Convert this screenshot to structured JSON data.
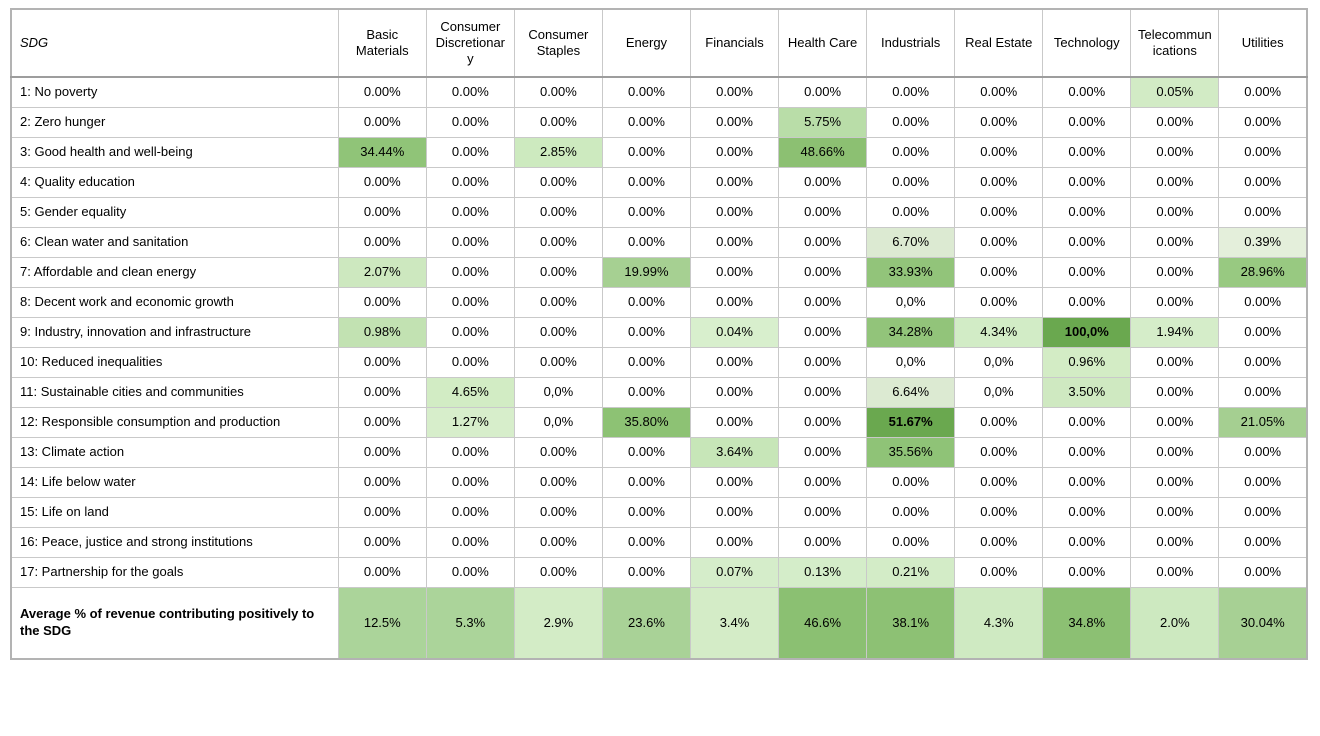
{
  "chart_data": {
    "type": "heatmap",
    "title": "",
    "header_first_col": "SDG",
    "columns": [
      "Basic Materials",
      "Consumer Discretionary",
      "Consumer Staples",
      "Energy",
      "Financials",
      "Health Care",
      "Industrials",
      "Real Estate",
      "Technology",
      "Telecommunications",
      "Utilities"
    ],
    "value_unit": "percent of revenue",
    "rows": [
      {
        "label": "1: No poverty",
        "values": [
          "0.00%",
          "0.00%",
          "0.00%",
          "0.00%",
          "0.00%",
          "0.00%",
          "0.00%",
          "0.00%",
          "0.00%",
          "0.05%",
          "0.00%"
        ],
        "bg": [
          null,
          null,
          null,
          null,
          null,
          null,
          null,
          null,
          null,
          "#d2ebc5",
          null
        ]
      },
      {
        "label": "2: Zero hunger",
        "values": [
          "0.00%",
          "0.00%",
          "0.00%",
          "0.00%",
          "0.00%",
          "5.75%",
          "0.00%",
          "0.00%",
          "0.00%",
          "0.00%",
          "0.00%"
        ],
        "bg": [
          null,
          null,
          null,
          null,
          null,
          "#b9dda8",
          null,
          null,
          null,
          null,
          null
        ]
      },
      {
        "label": "3: Good health and well-being",
        "values": [
          "34.44%",
          "0.00%",
          "2.85%",
          "0.00%",
          "0.00%",
          "48.66%",
          "0.00%",
          "0.00%",
          "0.00%",
          "0.00%",
          "0.00%"
        ],
        "bg": [
          "#90c478",
          null,
          "#cdeabf",
          null,
          null,
          "#8cc072",
          null,
          null,
          null,
          null,
          null
        ]
      },
      {
        "label": "4: Quality education",
        "values": [
          "0.00%",
          "0.00%",
          "0.00%",
          "0.00%",
          "0.00%",
          "0.00%",
          "0.00%",
          "0.00%",
          "0.00%",
          "0.00%",
          "0.00%"
        ],
        "bg": [
          null,
          null,
          null,
          null,
          null,
          null,
          null,
          null,
          null,
          null,
          null
        ]
      },
      {
        "label": "5: Gender equality",
        "values": [
          "0.00%",
          "0.00%",
          "0.00%",
          "0.00%",
          "0.00%",
          "0.00%",
          "0.00%",
          "0.00%",
          "0.00%",
          "0.00%",
          "0.00%"
        ],
        "bg": [
          null,
          null,
          null,
          null,
          null,
          null,
          null,
          null,
          null,
          null,
          null
        ]
      },
      {
        "label": "6: Clean water and sanitation",
        "values": [
          "0.00%",
          "0.00%",
          "0.00%",
          "0.00%",
          "0.00%",
          "0.00%",
          "6.70%",
          "0.00%",
          "0.00%",
          "0.00%",
          "0.39%"
        ],
        "bg": [
          null,
          null,
          null,
          null,
          null,
          null,
          "#dcead2",
          null,
          null,
          null,
          "#e4efdb"
        ]
      },
      {
        "label": "7: Affordable and clean energy",
        "values": [
          "2.07%",
          "0.00%",
          "0.00%",
          "19.99%",
          "0.00%",
          "0.00%",
          "33.93%",
          "0.00%",
          "0.00%",
          "0.00%",
          "28.96%"
        ],
        "bg": [
          "#cde8bf",
          null,
          null,
          "#a6d092",
          null,
          null,
          "#92c47a",
          null,
          null,
          null,
          "#98c981"
        ]
      },
      {
        "label": "8: Decent work and economic growth",
        "values": [
          "0.00%",
          "0.00%",
          "0.00%",
          "0.00%",
          "0.00%",
          "0.00%",
          "0,0%",
          "0.00%",
          "0.00%",
          "0.00%",
          "0.00%"
        ],
        "bg": [
          null,
          null,
          null,
          null,
          null,
          null,
          null,
          null,
          null,
          null,
          null
        ]
      },
      {
        "label": "9: Industry, innovation and infrastructure",
        "values": [
          "0.98%",
          "0.00%",
          "0.00%",
          "0.00%",
          "0.04%",
          "0.00%",
          "34.28%",
          "4.34%",
          "100,0%",
          "1.94%",
          "0.00%"
        ],
        "bg": [
          "#c2e2b2",
          null,
          null,
          null,
          "#d8efcd",
          null,
          "#92c47a",
          "#d2ecc6",
          "#6aa84f",
          "#d5edc9",
          null
        ]
      },
      {
        "label": "10: Reduced inequalities",
        "values": [
          "0.00%",
          "0.00%",
          "0.00%",
          "0.00%",
          "0.00%",
          "0.00%",
          "0,0%",
          "0,0%",
          "0.96%",
          "0.00%",
          "0.00%"
        ],
        "bg": [
          null,
          null,
          null,
          null,
          null,
          null,
          null,
          null,
          "#d3ecc5",
          null,
          null
        ]
      },
      {
        "label": "11: Sustainable cities and communities",
        "values": [
          "0.00%",
          "4.65%",
          "0,0%",
          "0.00%",
          "0.00%",
          "0.00%",
          "6.64%",
          "0,0%",
          "3.50%",
          "0.00%",
          "0.00%"
        ],
        "bg": [
          null,
          "#d2ecc4",
          null,
          null,
          null,
          null,
          "#dcead2",
          null,
          "#cfe9c1",
          null,
          null
        ]
      },
      {
        "label": "12: Responsible consumption and production",
        "values": [
          "0.00%",
          "1.27%",
          "0,0%",
          "35.80%",
          "0.00%",
          "0.00%",
          "51.67%",
          "0.00%",
          "0.00%",
          "0.00%",
          "21.05%"
        ],
        "bg": [
          null,
          "#d7eecb",
          null,
          "#8dc274",
          null,
          null,
          "#6aa84f",
          null,
          null,
          null,
          "#a5cf91"
        ]
      },
      {
        "label": "13: Climate action",
        "values": [
          "0.00%",
          "0.00%",
          "0.00%",
          "0.00%",
          "3.64%",
          "0.00%",
          "35.56%",
          "0.00%",
          "0.00%",
          "0.00%",
          "0.00%"
        ],
        "bg": [
          null,
          null,
          null,
          null,
          "#c7e6b8",
          null,
          "#8fc377",
          null,
          null,
          null,
          null
        ]
      },
      {
        "label": "14: Life below water",
        "values": [
          "0.00%",
          "0.00%",
          "0.00%",
          "0.00%",
          "0.00%",
          "0.00%",
          "0.00%",
          "0.00%",
          "0.00%",
          "0.00%",
          "0.00%"
        ],
        "bg": [
          null,
          null,
          null,
          null,
          null,
          null,
          null,
          null,
          null,
          null,
          null
        ]
      },
      {
        "label": "15: Life on land",
        "values": [
          "0.00%",
          "0.00%",
          "0.00%",
          "0.00%",
          "0.00%",
          "0.00%",
          "0.00%",
          "0.00%",
          "0.00%",
          "0.00%",
          "0.00%"
        ],
        "bg": [
          null,
          null,
          null,
          null,
          null,
          null,
          null,
          null,
          null,
          null,
          null
        ]
      },
      {
        "label": "16: Peace, justice and strong institutions",
        "values": [
          "0.00%",
          "0.00%",
          "0.00%",
          "0.00%",
          "0.00%",
          "0.00%",
          "0.00%",
          "0.00%",
          "0.00%",
          "0.00%",
          "0.00%"
        ],
        "bg": [
          null,
          null,
          null,
          null,
          null,
          null,
          null,
          null,
          null,
          null,
          null
        ]
      },
      {
        "label": "17: Partnership for the goals",
        "values": [
          "0.00%",
          "0.00%",
          "0.00%",
          "0.00%",
          "0.07%",
          "0.13%",
          "0.21%",
          "0.00%",
          "0.00%",
          "0.00%",
          "0.00%"
        ],
        "bg": [
          null,
          null,
          null,
          null,
          "#d5edca",
          "#d4edc9",
          "#d3ecc7",
          null,
          null,
          null,
          null
        ]
      }
    ],
    "bold_cells": [
      [
        8,
        8
      ],
      [
        11,
        6
      ]
    ],
    "footer": {
      "label": "Average % of revenue contributing positively to the SDG",
      "values": [
        "12.5%",
        "5.3%",
        "2.9%",
        "23.6%",
        "3.4%",
        "46.6%",
        "38.1%",
        "4.3%",
        "34.8%",
        "2.0%",
        "30.04%"
      ],
      "bg": [
        "#abd49a",
        "#abd49a",
        "#d3ecc6",
        "#a9d297",
        "#d4ecc7",
        "#8bc072",
        "#8dc174",
        "#cfeac2",
        "#8cc073",
        "#cde9c0",
        "#a7d094"
      ]
    },
    "colors": {
      "heat_max": "#6aa84f",
      "heat_mid": "#93c47b",
      "heat_low": "#d6eec9",
      "grid_border": "#c9c9c9",
      "outer_border": "#b3b3b3",
      "text": "#000000",
      "cell_default_bg": "#ffffff"
    }
  }
}
